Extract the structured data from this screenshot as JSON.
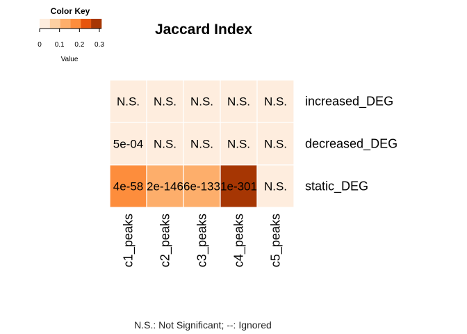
{
  "chart_data": {
    "type": "heatmap",
    "title": "Jaccard Index",
    "rows": [
      "increased_DEG",
      "decreased_DEG",
      "static_DEG"
    ],
    "columns": [
      "c1_peaks",
      "c2_peaks",
      "c3_peaks",
      "c4_peaks",
      "c5_peaks"
    ],
    "values": [
      [
        0.0,
        0.0,
        0.0,
        0.0,
        0.0
      ],
      [
        0.01,
        0.0,
        0.0,
        0.0,
        0.0
      ],
      [
        0.17,
        0.1,
        0.1,
        0.3,
        0.0
      ]
    ],
    "cell_labels": [
      [
        "N.S.",
        "N.S.",
        "N.S.",
        "N.S.",
        "N.S."
      ],
      [
        "5e-04",
        "N.S.",
        "N.S.",
        "N.S.",
        "N.S."
      ],
      [
        "4e-58",
        "2e-146",
        "6e-133",
        "1e-301",
        "N.S."
      ]
    ],
    "color_key": {
      "title": "Color Key",
      "xlabel": "Value",
      "ticks": [
        "0",
        "0.1",
        "0.2",
        "0.3"
      ],
      "range": [
        0,
        0.3
      ],
      "colors": [
        "#FEEDDE",
        "#FDD0A2",
        "#FDAE6B",
        "#FD8D3C",
        "#E6550D",
        "#A63603"
      ]
    },
    "footnote": "N.S.: Not Significant; --: Ignored"
  }
}
